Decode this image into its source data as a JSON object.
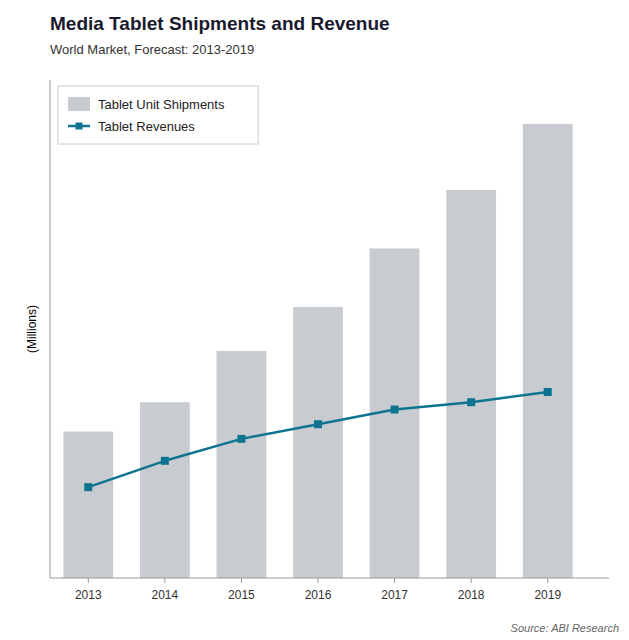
{
  "chart_data": {
    "type": "bar",
    "title": "Media Tablet Shipments and Revenue",
    "subtitle": "World Market, Forecast: 2013-2019",
    "source": "Source: ABI Research",
    "ylabel": "(Millions)",
    "x": [
      2013,
      2014,
      2015,
      2016,
      2017,
      2018,
      2019
    ],
    "xlim": [
      2012.5,
      2019.8
    ],
    "xticks": [
      2013,
      2014,
      2015,
      2016,
      2017,
      2018,
      2019
    ],
    "ylim": [
      0,
      340
    ],
    "tick_labels": "x",
    "grid": false,
    "legend": "upper left",
    "series": [
      {
        "name": "Tablet Unit Shipments",
        "type": "bar",
        "color": "#c8ccd0",
        "values": [
          100,
          120,
          155,
          185,
          225,
          265,
          310
        ]
      },
      {
        "name": "Tablet Revenues",
        "type": "line",
        "color": "#0e7490",
        "marker": "square",
        "values": [
          62,
          80,
          95,
          105,
          115,
          120,
          127
        ]
      }
    ]
  }
}
